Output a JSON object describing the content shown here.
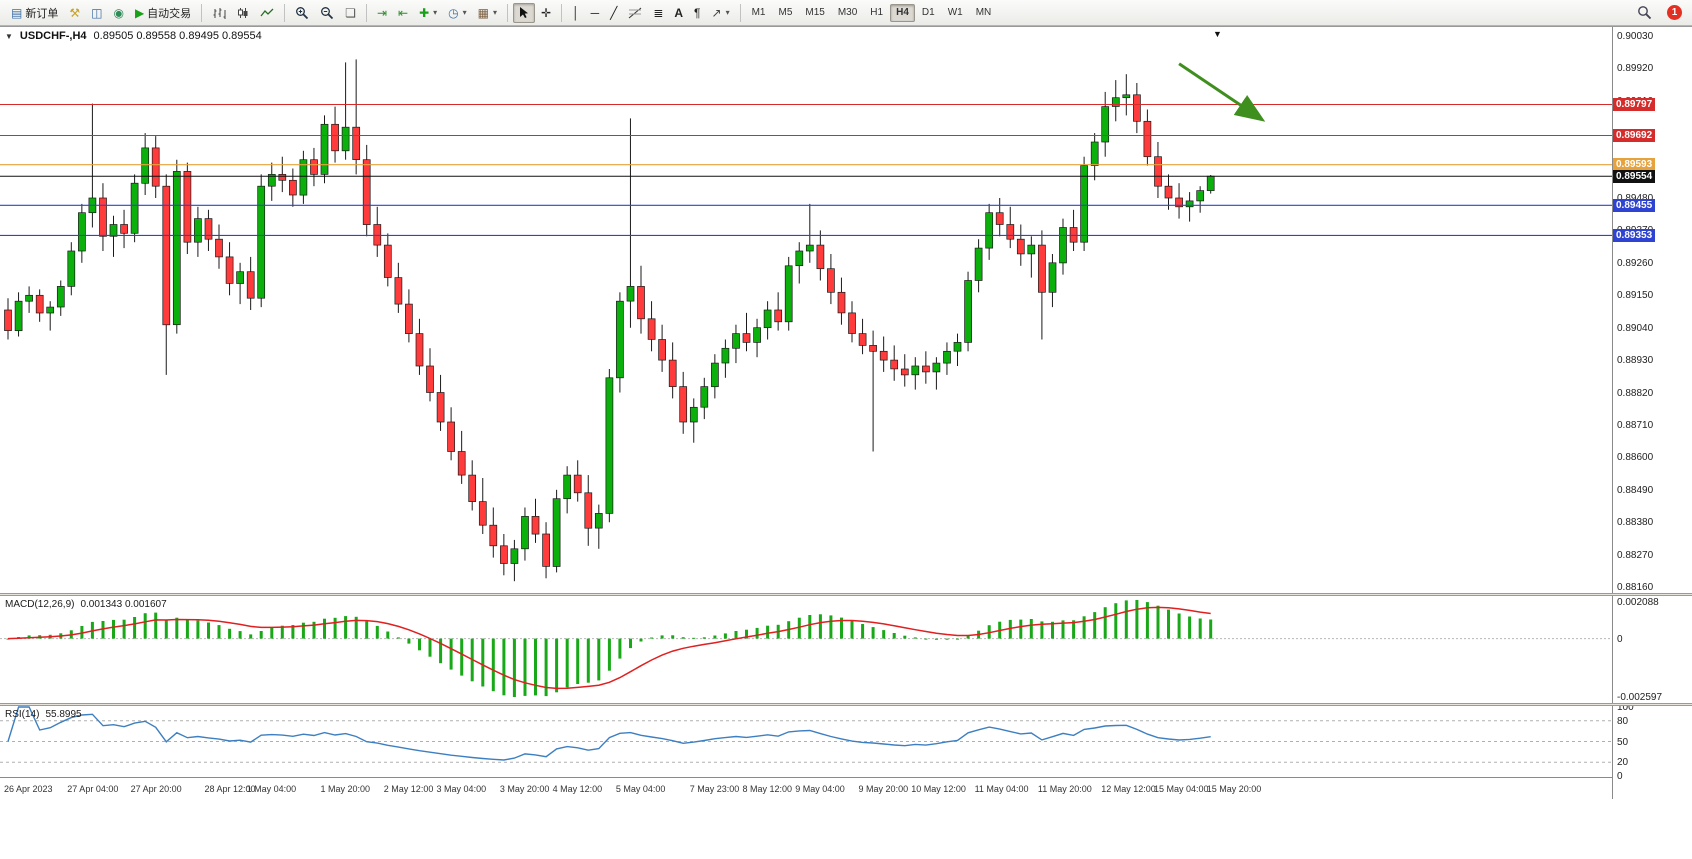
{
  "toolbar": {
    "new_order": "新订单",
    "auto_trading": "自动交易",
    "timeframes": [
      "M1",
      "M5",
      "M15",
      "M30",
      "H1",
      "H4",
      "D1",
      "W1",
      "MN"
    ],
    "active_timeframe": "H4",
    "notification_count": "1"
  },
  "icons": {
    "new_order": "▤",
    "mql": "⚒",
    "multi_terminal": "◫",
    "community": "◉",
    "autotrade_play": "▶",
    "tile_windows": "❏",
    "auto_scroll": "⇥",
    "chart_shift": "⇤",
    "indicators": "✚",
    "periods": "◷",
    "templates": "▦",
    "caret": "▾",
    "crosshair": "✛",
    "vline": "│",
    "hline": "─",
    "trendline": "╱",
    "channels": "≣",
    "text": "A",
    "text_label": "¶",
    "arrows": "↗",
    "pane_collapse": "▼",
    "shift_marker": "▼"
  },
  "chart_data": {
    "type": "candlestick",
    "title": "USDCHF-,H4",
    "ohlc_display": "0.89505 0.89558 0.89495 0.89554",
    "open": "0.89505",
    "high": "0.89558",
    "low": "0.89495",
    "close": "0.89554",
    "y_axis": {
      "top": 0.9003,
      "bottom": 0.8816,
      "step": 0.0011
    },
    "colors": {
      "up": "#0cb00c",
      "down": "#ff3b3b",
      "wick": "#1a1a1a",
      "macd_hist": "#18a818",
      "macd_signal": "#e02020",
      "rsi_line": "#3e7fc1"
    },
    "hlines": [
      {
        "price": 0.89797,
        "label": "0.89797",
        "color": "#d62b2b"
      },
      {
        "price": 0.89692,
        "label": "0.89692",
        "color": "#d62b2b"
      },
      {
        "price": 0.89593,
        "label": "0.89593",
        "color": "#e6a23c"
      },
      {
        "price": 0.89455,
        "label": "0.89455",
        "color": "#2f43d3"
      },
      {
        "price": 0.89353,
        "label": "0.89353",
        "color": "#2f43d3"
      }
    ],
    "bid_line": {
      "price": 0.89554,
      "label": "0.89554",
      "color": "#111111"
    },
    "annotation": {
      "type": "arrow",
      "i1": 111,
      "p1": 0.89935,
      "i2": 118.7,
      "p2": 0.8975,
      "color": "#3f8f1f"
    },
    "macd": {
      "label": "MACD(12,26,9)",
      "values": "0.001343 0.001607",
      "fast": 12,
      "slow": 26,
      "signal": 9,
      "scale_top": "0.002088",
      "scale_zero": "0",
      "scale_bottom": "-0.002597"
    },
    "rsi": {
      "label": "RSI(14)",
      "value": "55.8995",
      "period": 14,
      "levels": [
        80,
        50,
        20
      ],
      "scale": [
        "100",
        "80",
        "50",
        "20",
        "0"
      ]
    },
    "time_labels": [
      {
        "idx": 0,
        "text": "26 Apr 2023"
      },
      {
        "idx": 6,
        "text": "27 Apr 04:00"
      },
      {
        "idx": 12,
        "text": "27 Apr 20:00"
      },
      {
        "idx": 19,
        "text": "28 Apr 12:00"
      },
      {
        "idx": 23,
        "text": "1 May 04:00"
      },
      {
        "idx": 30,
        "text": "1 May 20:00"
      },
      {
        "idx": 36,
        "text": "2 May 12:00"
      },
      {
        "idx": 41,
        "text": "3 May 04:00"
      },
      {
        "idx": 47,
        "text": "3 May 20:00"
      },
      {
        "idx": 52,
        "text": "4 May 12:00"
      },
      {
        "idx": 58,
        "text": "5 May 04:00"
      },
      {
        "idx": 65,
        "text": "7 May 23:00"
      },
      {
        "idx": 70,
        "text": "8 May 12:00"
      },
      {
        "idx": 75,
        "text": "9 May 04:00"
      },
      {
        "idx": 81,
        "text": "9 May 20:00"
      },
      {
        "idx": 86,
        "text": "10 May 12:00"
      },
      {
        "idx": 92,
        "text": "11 May 04:00"
      },
      {
        "idx": 98,
        "text": "11 May 20:00"
      },
      {
        "idx": 104,
        "text": "12 May 12:00"
      },
      {
        "idx": 109,
        "text": "15 May 04:00"
      },
      {
        "idx": 114,
        "text": "15 May 20:00"
      }
    ],
    "candles": [
      [
        0.891,
        0.8914,
        0.89,
        0.8903
      ],
      [
        0.8903,
        0.8916,
        0.8901,
        0.8913
      ],
      [
        0.8913,
        0.8918,
        0.8909,
        0.8915
      ],
      [
        0.8915,
        0.8917,
        0.8906,
        0.8909
      ],
      [
        0.8909,
        0.8913,
        0.8903,
        0.8911
      ],
      [
        0.8911,
        0.892,
        0.8908,
        0.8918
      ],
      [
        0.8918,
        0.8933,
        0.8915,
        0.893
      ],
      [
        0.893,
        0.8946,
        0.8926,
        0.8943
      ],
      [
        0.8943,
        0.898,
        0.8938,
        0.8948
      ],
      [
        0.8948,
        0.8953,
        0.893,
        0.8935
      ],
      [
        0.8935,
        0.8942,
        0.8928,
        0.8939
      ],
      [
        0.8939,
        0.8944,
        0.8931,
        0.8936
      ],
      [
        0.8936,
        0.8956,
        0.8933,
        0.8953
      ],
      [
        0.8953,
        0.897,
        0.8949,
        0.8965
      ],
      [
        0.8965,
        0.8969,
        0.8948,
        0.8952
      ],
      [
        0.8952,
        0.8956,
        0.8888,
        0.8905
      ],
      [
        0.8905,
        0.8961,
        0.8902,
        0.8957
      ],
      [
        0.8957,
        0.896,
        0.8929,
        0.8933
      ],
      [
        0.8933,
        0.8945,
        0.8928,
        0.8941
      ],
      [
        0.8941,
        0.8944,
        0.893,
        0.8934
      ],
      [
        0.8934,
        0.8939,
        0.8924,
        0.8928
      ],
      [
        0.8928,
        0.8933,
        0.8915,
        0.8919
      ],
      [
        0.8919,
        0.8926,
        0.8912,
        0.8923
      ],
      [
        0.8923,
        0.8928,
        0.891,
        0.8914
      ],
      [
        0.8914,
        0.8956,
        0.8911,
        0.8952
      ],
      [
        0.8952,
        0.896,
        0.8947,
        0.8956
      ],
      [
        0.8956,
        0.8962,
        0.895,
        0.8954
      ],
      [
        0.8954,
        0.8958,
        0.8945,
        0.8949
      ],
      [
        0.8949,
        0.8964,
        0.8946,
        0.8961
      ],
      [
        0.8961,
        0.8965,
        0.8952,
        0.8956
      ],
      [
        0.8956,
        0.8976,
        0.8953,
        0.8973
      ],
      [
        0.8973,
        0.8979,
        0.896,
        0.8964
      ],
      [
        0.8964,
        0.8994,
        0.8961,
        0.8972
      ],
      [
        0.8972,
        0.8995,
        0.8956,
        0.8961
      ],
      [
        0.8961,
        0.8966,
        0.8935,
        0.8939
      ],
      [
        0.8939,
        0.8945,
        0.8928,
        0.8932
      ],
      [
        0.8932,
        0.8936,
        0.8918,
        0.8921
      ],
      [
        0.8921,
        0.8926,
        0.8909,
        0.8912
      ],
      [
        0.8912,
        0.8917,
        0.8899,
        0.8902
      ],
      [
        0.8902,
        0.8907,
        0.8888,
        0.8891
      ],
      [
        0.8891,
        0.8897,
        0.8879,
        0.8882
      ],
      [
        0.8882,
        0.8888,
        0.8869,
        0.8872
      ],
      [
        0.8872,
        0.8877,
        0.8859,
        0.8862
      ],
      [
        0.8862,
        0.8869,
        0.8851,
        0.8854
      ],
      [
        0.8854,
        0.8859,
        0.8842,
        0.8845
      ],
      [
        0.8845,
        0.8853,
        0.8834,
        0.8837
      ],
      [
        0.8837,
        0.8843,
        0.8826,
        0.883
      ],
      [
        0.883,
        0.8834,
        0.882,
        0.8824
      ],
      [
        0.8824,
        0.8832,
        0.8818,
        0.8829
      ],
      [
        0.8829,
        0.8843,
        0.8825,
        0.884
      ],
      [
        0.884,
        0.8846,
        0.8831,
        0.8834
      ],
      [
        0.8834,
        0.8838,
        0.8819,
        0.8823
      ],
      [
        0.8823,
        0.8849,
        0.8821,
        0.8846
      ],
      [
        0.8846,
        0.8857,
        0.8841,
        0.8854
      ],
      [
        0.8854,
        0.8859,
        0.8845,
        0.8848
      ],
      [
        0.8848,
        0.8854,
        0.883,
        0.8836
      ],
      [
        0.8836,
        0.8844,
        0.8829,
        0.8841
      ],
      [
        0.8841,
        0.889,
        0.8838,
        0.8887
      ],
      [
        0.8887,
        0.8916,
        0.8882,
        0.8913
      ],
      [
        0.8913,
        0.8975,
        0.8904,
        0.8918
      ],
      [
        0.8918,
        0.8925,
        0.8902,
        0.8907
      ],
      [
        0.8907,
        0.8913,
        0.8896,
        0.89
      ],
      [
        0.89,
        0.8905,
        0.8889,
        0.8893
      ],
      [
        0.8893,
        0.8899,
        0.888,
        0.8884
      ],
      [
        0.8884,
        0.8889,
        0.8868,
        0.8872
      ],
      [
        0.8872,
        0.888,
        0.8865,
        0.8877
      ],
      [
        0.8877,
        0.8887,
        0.8873,
        0.8884
      ],
      [
        0.8884,
        0.8895,
        0.888,
        0.8892
      ],
      [
        0.8892,
        0.89,
        0.8887,
        0.8897
      ],
      [
        0.8897,
        0.8905,
        0.8892,
        0.8902
      ],
      [
        0.8902,
        0.8909,
        0.8896,
        0.8899
      ],
      [
        0.8899,
        0.8907,
        0.8894,
        0.8904
      ],
      [
        0.8904,
        0.8913,
        0.89,
        0.891
      ],
      [
        0.891,
        0.8916,
        0.8903,
        0.8906
      ],
      [
        0.8906,
        0.8928,
        0.8903,
        0.8925
      ],
      [
        0.8925,
        0.8933,
        0.8919,
        0.893
      ],
      [
        0.893,
        0.8946,
        0.8926,
        0.8932
      ],
      [
        0.8932,
        0.8937,
        0.892,
        0.8924
      ],
      [
        0.8924,
        0.8929,
        0.8912,
        0.8916
      ],
      [
        0.8916,
        0.8921,
        0.8905,
        0.8909
      ],
      [
        0.8909,
        0.8913,
        0.8899,
        0.8902
      ],
      [
        0.8902,
        0.8907,
        0.8895,
        0.8898
      ],
      [
        0.8898,
        0.8903,
        0.8862,
        0.8896
      ],
      [
        0.8896,
        0.8901,
        0.8889,
        0.8893
      ],
      [
        0.8893,
        0.8898,
        0.8886,
        0.889
      ],
      [
        0.889,
        0.8895,
        0.8884,
        0.8888
      ],
      [
        0.8888,
        0.8894,
        0.8883,
        0.8891
      ],
      [
        0.8891,
        0.8896,
        0.8885,
        0.8889
      ],
      [
        0.8889,
        0.8894,
        0.8883,
        0.8892
      ],
      [
        0.8892,
        0.8899,
        0.8888,
        0.8896
      ],
      [
        0.8896,
        0.8902,
        0.8891,
        0.8899
      ],
      [
        0.8899,
        0.8923,
        0.8896,
        0.892
      ],
      [
        0.892,
        0.8934,
        0.8916,
        0.8931
      ],
      [
        0.8931,
        0.8946,
        0.8927,
        0.8943
      ],
      [
        0.8943,
        0.8948,
        0.8935,
        0.8939
      ],
      [
        0.8939,
        0.8945,
        0.8931,
        0.8934
      ],
      [
        0.8934,
        0.8939,
        0.8925,
        0.8929
      ],
      [
        0.8929,
        0.8935,
        0.8921,
        0.8932
      ],
      [
        0.8932,
        0.8937,
        0.89,
        0.8916
      ],
      [
        0.8916,
        0.8929,
        0.8911,
        0.8926
      ],
      [
        0.8926,
        0.8941,
        0.8922,
        0.8938
      ],
      [
        0.8938,
        0.8944,
        0.893,
        0.8933
      ],
      [
        0.8933,
        0.8962,
        0.893,
        0.8959
      ],
      [
        0.8959,
        0.897,
        0.8954,
        0.8967
      ],
      [
        0.8967,
        0.8984,
        0.8962,
        0.8979
      ],
      [
        0.8979,
        0.8988,
        0.8974,
        0.8982
      ],
      [
        0.8982,
        0.899,
        0.8976,
        0.8983
      ],
      [
        0.8983,
        0.8987,
        0.897,
        0.8974
      ],
      [
        0.8974,
        0.8978,
        0.8959,
        0.8962
      ],
      [
        0.8962,
        0.8967,
        0.8948,
        0.8952
      ],
      [
        0.8952,
        0.8956,
        0.8944,
        0.8948
      ],
      [
        0.8948,
        0.8953,
        0.8941,
        0.8945
      ],
      [
        0.8945,
        0.895,
        0.894,
        0.8947
      ],
      [
        0.8947,
        0.8952,
        0.8943,
        0.89505
      ],
      [
        0.89505,
        0.89558,
        0.89495,
        0.89554
      ]
    ]
  }
}
